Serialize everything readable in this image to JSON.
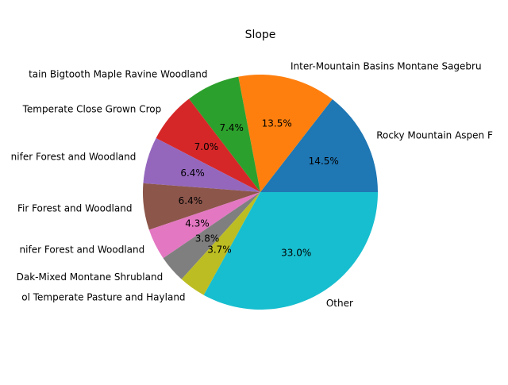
{
  "chart_data": {
    "type": "pie",
    "title": "Slope",
    "start_angle_deg": 0,
    "direction": "counterclockwise",
    "slices": [
      {
        "label": "Rocky Mountain Aspen F",
        "value": 14.5,
        "pct_text": "14.5%",
        "color": "#1f77b4"
      },
      {
        "label": "Inter-Mountain Basins Montane Sagebru",
        "value": 13.5,
        "pct_text": "13.5%",
        "color": "#ff7f0e"
      },
      {
        "label": "tain Bigtooth Maple Ravine Woodland",
        "value": 7.4,
        "pct_text": "7.4%",
        "color": "#2ca02c"
      },
      {
        "label": "Temperate Close Grown Crop",
        "value": 7.0,
        "pct_text": "7.0%",
        "color": "#d62728"
      },
      {
        "label": "nifer Forest and Woodland",
        "value": 6.4,
        "pct_text": "6.4%",
        "color": "#9467bd"
      },
      {
        "label": "Fir Forest and Woodland",
        "value": 6.4,
        "pct_text": "6.4%",
        "color": "#8c564b"
      },
      {
        "label": "nifer Forest and Woodland",
        "value": 4.3,
        "pct_text": "4.3%",
        "color": "#e377c2"
      },
      {
        "label": "Dak-Mixed Montane Shrubland",
        "value": 3.8,
        "pct_text": "3.8%",
        "color": "#7f7f7f"
      },
      {
        "label": "ol Temperate Pasture and Hayland",
        "value": 3.7,
        "pct_text": "3.7%",
        "color": "#bcbd22"
      },
      {
        "label": "Other",
        "value": 33.0,
        "pct_text": "33.0%",
        "color": "#17becf"
      }
    ]
  }
}
